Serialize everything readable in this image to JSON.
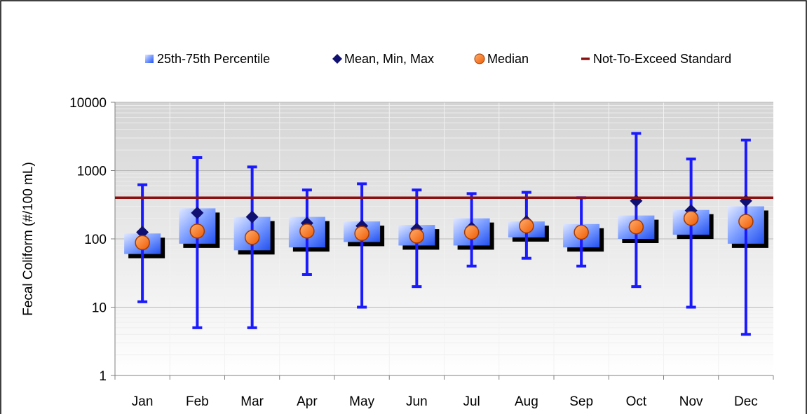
{
  "chart_data": {
    "type": "box",
    "ylabel": "Fecal Coliform (#/100 mL)",
    "yscale": "log",
    "ylim": [
      1,
      10000
    ],
    "yticks": [
      "1",
      "10",
      "100",
      "1000",
      "10000"
    ],
    "grid": true,
    "legend_position": "top",
    "categories": [
      "Jan",
      "Feb",
      "Mar",
      "Apr",
      "May",
      "Jun",
      "Jul",
      "Aug",
      "Sep",
      "Oct",
      "Nov",
      "Dec"
    ],
    "p25": [
      60,
      85,
      68,
      75,
      90,
      80,
      80,
      105,
      75,
      100,
      115,
      85
    ],
    "p75": [
      120,
      280,
      210,
      210,
      180,
      160,
      200,
      180,
      165,
      220,
      265,
      300
    ],
    "mean": [
      125,
      240,
      210,
      170,
      155,
      140,
      145,
      180,
      130,
      360,
      260,
      360
    ],
    "min": [
      12,
      5,
      5,
      30,
      10,
      20,
      40,
      52,
      40,
      20,
      10,
      4
    ],
    "max": [
      620,
      1550,
      1130,
      520,
      640,
      520,
      460,
      480,
      400,
      3500,
      1480,
      2800
    ],
    "median": [
      88,
      130,
      105,
      130,
      120,
      110,
      125,
      155,
      125,
      150,
      200,
      180
    ],
    "standard": 400,
    "legend": [
      {
        "label": "25th-75th Percentile",
        "marker": "box"
      },
      {
        "label": "Mean, Min, Max",
        "marker": "diamond"
      },
      {
        "label": "Median",
        "marker": "circle"
      },
      {
        "label": "Not-To-Exceed Standard",
        "marker": "line"
      }
    ],
    "colors": {
      "box_light": "#c6d4ff",
      "box_dark": "#2350f0",
      "whisker": "#1a1aff",
      "mean": "#101073",
      "median": "#ff6a10",
      "median_edge": "#a33a00",
      "standard": "#8b1010"
    }
  }
}
